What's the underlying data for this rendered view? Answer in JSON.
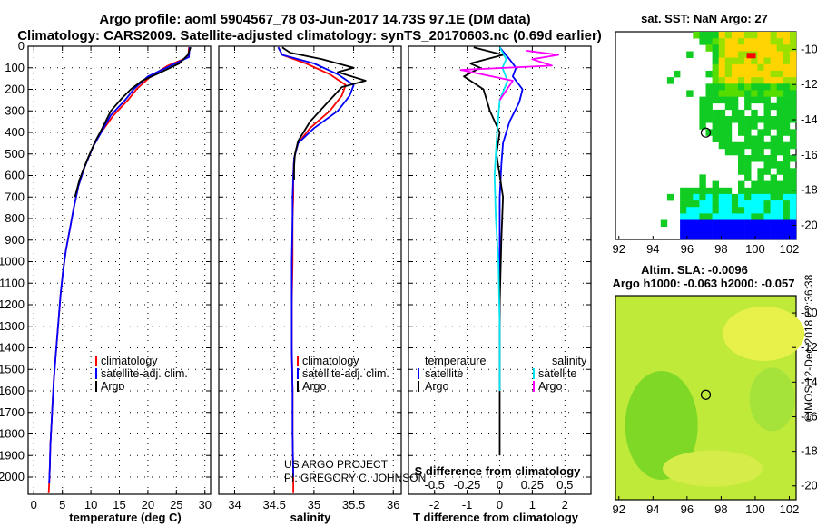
{
  "title_line1": "Argo profile: aoml 5904567_78 03-Jun-2017 14.73S 97.1E (DM data)",
  "title_line2": "Climatology: CARS2009. Satellite-adjusted climatology: synTS_20170603.nc (0.69d earlier)",
  "colors": {
    "climatology": "#ff0000",
    "satellite": "#0000ff",
    "argo": "#000000",
    "sat_salinity": "#00e5ee",
    "argo_salinity": "#ff00ff"
  },
  "chart_data": [
    {
      "name": "temperature-panel",
      "type": "line",
      "xlabel": "temperature (deg C)",
      "ylabel": "",
      "xlim": [
        -1,
        31
      ],
      "ylim": [
        2080,
        0
      ],
      "xticks": [
        0,
        5,
        10,
        15,
        20,
        25,
        30
      ],
      "yticks": [
        0,
        100,
        200,
        300,
        400,
        500,
        600,
        700,
        800,
        900,
        1000,
        1100,
        1200,
        1300,
        1400,
        1500,
        1600,
        1700,
        1800,
        1900,
        2000
      ],
      "grid": "dotted",
      "legend": {
        "position": "lower-center",
        "entries": [
          "climatology",
          "satellite-adj. clim.",
          "Argo"
        ]
      },
      "series": [
        {
          "name": "climatology",
          "color": "#ff0000",
          "x": [
            27.2,
            27.1,
            23.5,
            20.5,
            18.0,
            16.5,
            14.0,
            11.8,
            10.5,
            8.9,
            7.8,
            7.0,
            6.3,
            5.6,
            5.1,
            4.7,
            4.4,
            4.1,
            3.8,
            3.5,
            3.3,
            3.1,
            2.9,
            2.8,
            2.7,
            2.6
          ],
          "y": [
            5,
            50,
            90,
            140,
            200,
            250,
            320,
            400,
            460,
            560,
            650,
            750,
            850,
            950,
            1050,
            1150,
            1250,
            1350,
            1450,
            1550,
            1650,
            1750,
            1850,
            1950,
            2030,
            2075
          ]
        },
        {
          "name": "satellite-adj. clim.",
          "color": "#0000ff",
          "x": [
            27.3,
            27.2,
            24.0,
            20.0,
            17.5,
            16.0,
            13.5,
            11.8,
            10.5,
            8.9,
            7.8,
            7.0,
            6.3,
            5.6,
            5.1,
            4.7,
            4.4,
            4.1,
            3.8,
            3.5,
            3.3,
            3.1,
            2.9,
            2.8,
            2.7
          ],
          "y": [
            5,
            50,
            90,
            140,
            200,
            250,
            320,
            400,
            460,
            560,
            650,
            750,
            850,
            950,
            1050,
            1150,
            1250,
            1350,
            1450,
            1550,
            1650,
            1750,
            1850,
            1950,
            2030
          ]
        },
        {
          "name": "Argo",
          "color": "#000000",
          "x": [
            27.5,
            27.0,
            25.5,
            21.5,
            19.0,
            17.0,
            15.5,
            13.5,
            12.0,
            10.8,
            9.3,
            8.0,
            7.2
          ],
          "y": [
            5,
            40,
            80,
            130,
            160,
            200,
            240,
            300,
            380,
            440,
            530,
            620,
            700
          ]
        }
      ]
    },
    {
      "name": "salinity-panel",
      "type": "line",
      "xlabel": "salinity",
      "ylabel": "",
      "xlim": [
        33.8,
        36.1
      ],
      "ylim": [
        2080,
        0
      ],
      "xticks": [
        34,
        34.5,
        35,
        35.5,
        36
      ],
      "grid": "dotted",
      "legend": {
        "position": "lower-center",
        "entries": [
          "climatology",
          "satellite-adj. clim.",
          "Argo"
        ]
      },
      "annotations": [
        "US ARGO PROJECT",
        "PI: GREGORY C. JOHNSON"
      ],
      "series": [
        {
          "name": "climatology",
          "color": "#ff0000",
          "x": [
            34.55,
            34.6,
            34.9,
            35.2,
            35.4,
            35.35,
            35.2,
            34.95,
            34.8,
            34.75,
            34.74,
            34.74,
            34.73,
            34.73,
            34.72,
            34.72,
            34.73,
            34.73,
            34.74,
            34.74
          ],
          "y": [
            5,
            40,
            80,
            130,
            180,
            230,
            300,
            380,
            450,
            520,
            600,
            700,
            800,
            1000,
            1200,
            1400,
            1600,
            1800,
            2000,
            2075
          ]
        },
        {
          "name": "satellite-adj. clim.",
          "color": "#0000ff",
          "x": [
            34.55,
            34.6,
            35.0,
            35.3,
            35.5,
            35.45,
            35.3,
            35.0,
            34.8,
            34.75,
            34.74,
            34.73,
            34.73,
            34.72,
            34.72,
            34.72,
            34.73,
            34.73,
            34.74
          ],
          "y": [
            5,
            40,
            80,
            130,
            180,
            230,
            300,
            380,
            450,
            520,
            600,
            700,
            800,
            1000,
            1200,
            1400,
            1600,
            1800,
            2000
          ]
        },
        {
          "name": "Argo",
          "color": "#000000",
          "x": [
            34.6,
            34.7,
            35.1,
            35.3,
            35.5,
            35.3,
            35.65,
            35.35,
            35.2,
            34.95,
            34.8,
            34.76,
            34.75,
            34.75
          ],
          "y": [
            5,
            30,
            60,
            80,
            100,
            120,
            160,
            190,
            250,
            350,
            440,
            500,
            560,
            620
          ]
        }
      ]
    },
    {
      "name": "difference-panel",
      "type": "line",
      "xlabel": "T difference from climatology",
      "x2label": "S difference from climatology",
      "xlim": [
        -2.8,
        2.8
      ],
      "x2lim": [
        -0.7,
        0.7
      ],
      "ylim": [
        2080,
        0
      ],
      "xticks": [
        -2,
        -1,
        0,
        1,
        2
      ],
      "x2ticks": [
        "-0.5",
        "-0.25",
        "0",
        "0.25",
        "0.5"
      ],
      "grid": "dotted",
      "legend": {
        "position": "lower-center",
        "temperature": [
          "satellite",
          "Argo"
        ],
        "salinity": [
          "satellite",
          "Argo"
        ]
      },
      "series": [
        {
          "name": "temperature satellite",
          "color": "#0000ff",
          "x": [
            0.0,
            0.3,
            0.5,
            0.4,
            0.7,
            0.6,
            0.3,
            0.1,
            0.05,
            0.0,
            0.0,
            0.0,
            0.0
          ],
          "y": [
            5,
            60,
            100,
            140,
            200,
            260,
            350,
            450,
            550,
            700,
            900,
            1300,
            1600
          ]
        },
        {
          "name": "temperature Argo",
          "color": "#000000",
          "x": [
            -0.8,
            0.1,
            -0.9,
            -0.6,
            -1.1,
            -0.5,
            -0.3,
            0.0,
            -0.1,
            0.1,
            0.05,
            0.0,
            0.0,
            0.0
          ],
          "y": [
            5,
            40,
            80,
            100,
            140,
            200,
            300,
            400,
            500,
            700,
            900,
            1200,
            1500,
            1900
          ]
        },
        {
          "name": "salinity satellite",
          "color": "#00e5ee",
          "x": [
            0.0,
            0.05,
            0.02,
            0.06,
            0.0,
            -0.02,
            -0.04,
            -0.03,
            -0.01,
            0.0,
            0.0
          ],
          "y": [
            5,
            60,
            100,
            160,
            250,
            400,
            600,
            800,
            1000,
            1300,
            1600
          ]
        },
        {
          "name": "salinity Argo",
          "color": "#ff00ff",
          "x": [
            0.2,
            0.45,
            0.25,
            0.4,
            -0.3,
            0.1,
            0.0
          ],
          "y": [
            20,
            40,
            60,
            90,
            110,
            160,
            250
          ]
        }
      ]
    },
    {
      "name": "sst-map",
      "type": "heatmap",
      "title": "sat. SST: NaN Argo: 27",
      "xticks": [
        92,
        94,
        96,
        98,
        100,
        102
      ],
      "yticks": [
        -10,
        -12,
        -14,
        -16,
        -18,
        -20
      ],
      "xlim": [
        91.8,
        102.4
      ],
      "ylim": [
        -20.8,
        -9.0
      ],
      "profile_location": [
        97.1,
        -14.73
      ]
    },
    {
      "name": "sla-map",
      "type": "heatmap",
      "title": "Altim. SLA: -0.0096",
      "subtitle": "Argo h1000: -0.063 h2000: -0.057",
      "xticks": [
        92,
        94,
        96,
        98,
        100,
        102
      ],
      "yticks": [
        -10,
        -12,
        -14,
        -16,
        -18,
        -20
      ],
      "xlim": [
        91.8,
        102.4
      ],
      "ylim": [
        -20.8,
        -9.0
      ],
      "profile_location": [
        97.1,
        -14.73
      ]
    }
  ],
  "stamp": "©IMOS 12-Dec-2018 22:36:38"
}
